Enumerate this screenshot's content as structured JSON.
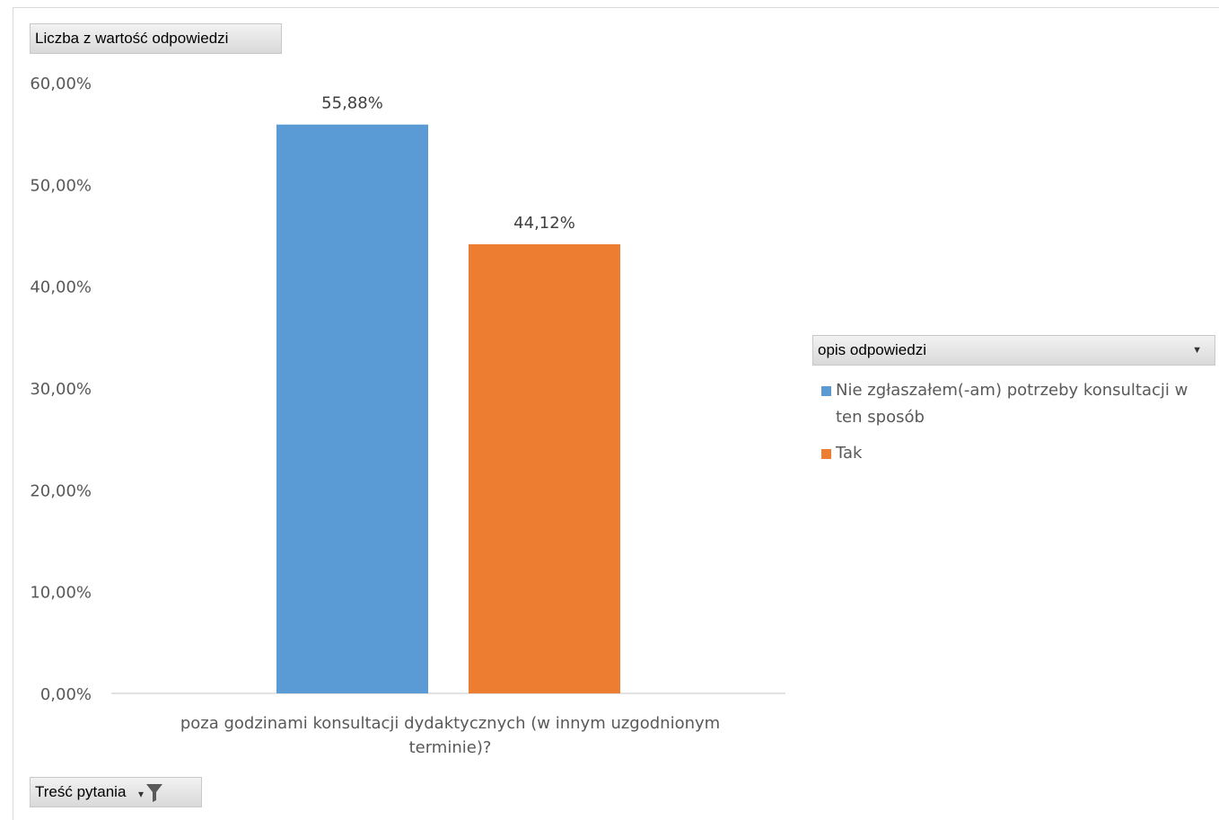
{
  "value_field": {
    "label": "Liczba z wartość odpowiedzi"
  },
  "axis_field": {
    "label": "Treść pytania",
    "icon": "filter-icon"
  },
  "legend_field": {
    "label": "opis odpowiedzi",
    "icon": "chevron-down-icon"
  },
  "chart_data": {
    "type": "bar",
    "categories": [
      "poza godzinami konsultacji dydaktycznych (w innym uzgodnionym terminie)?"
    ],
    "category_lines": [
      "poza godzinami konsultacji dydaktycznych (w innym uzgodnionym",
      "terminie)?"
    ],
    "series": [
      {
        "name": "Nie zgłaszałem(-am) potrzeby konsultacji w ten sposób",
        "name_lines": [
          "Nie zgłaszałem(-am) potrzeby konsultacji w",
          "ten sposób"
        ],
        "values": [
          55.88
        ],
        "label": "55,88%",
        "color": "#5b9bd5"
      },
      {
        "name": "Tak",
        "name_lines": [
          "Tak"
        ],
        "values": [
          44.12
        ],
        "label": "44,12%",
        "color": "#ed7d31"
      }
    ],
    "ylim": [
      0,
      60
    ],
    "y_ticks": [
      "0,00%",
      "10,00%",
      "20,00%",
      "30,00%",
      "40,00%",
      "50,00%",
      "60,00%"
    ],
    "grid": false,
    "legend_position": "right"
  }
}
